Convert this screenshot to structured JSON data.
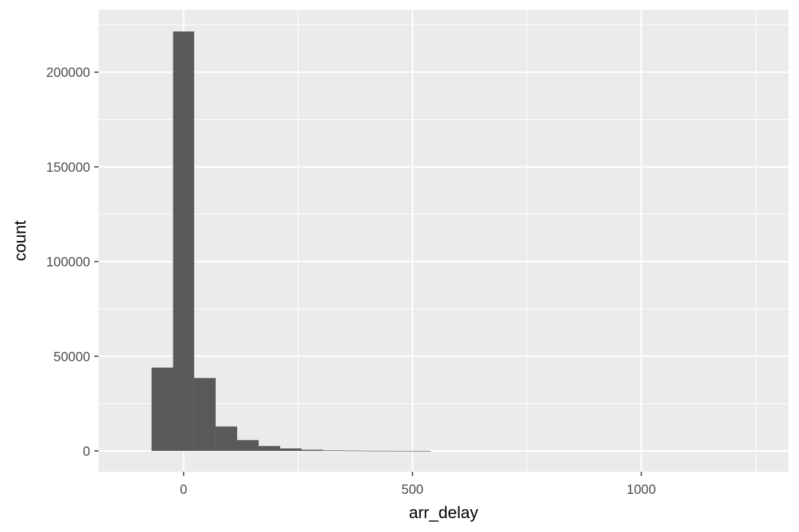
{
  "chart_data": {
    "type": "bar",
    "subtype": "histogram",
    "xlabel": "arr_delay",
    "ylabel": "count",
    "xlim": [
      -186,
      1322
    ],
    "ylim": [
      -11000,
      233000
    ],
    "x_ticks": [
      0,
      500,
      1000
    ],
    "x_tick_labels": [
      "0",
      "500",
      "1000"
    ],
    "y_ticks": [
      0,
      50000,
      100000,
      150000,
      200000
    ],
    "y_tick_labels": [
      "0",
      "50000",
      "100000",
      "150000",
      "200000"
    ],
    "grid": true,
    "legend": "none",
    "colors": {
      "panel_background": "#ebebeb",
      "grid": "#ffffff",
      "bar": "#595959",
      "tick_label": "#4d4d4d",
      "axis_title": "#000000"
    },
    "bins": [
      {
        "x0": -70,
        "x1": -23,
        "count": 44000
      },
      {
        "x0": -23,
        "x1": 23,
        "count": 221500
      },
      {
        "x0": 23,
        "x1": 70,
        "count": 38500
      },
      {
        "x0": 70,
        "x1": 117,
        "count": 12900
      },
      {
        "x0": 117,
        "x1": 164,
        "count": 5700
      },
      {
        "x0": 164,
        "x1": 211,
        "count": 2600
      },
      {
        "x0": 211,
        "x1": 258,
        "count": 1300
      },
      {
        "x0": 258,
        "x1": 305,
        "count": 600
      },
      {
        "x0": 305,
        "x1": 352,
        "count": 300
      },
      {
        "x0": 352,
        "x1": 399,
        "count": 150
      },
      {
        "x0": 399,
        "x1": 446,
        "count": 80
      },
      {
        "x0": 446,
        "x1": 493,
        "count": 40
      },
      {
        "x0": 493,
        "x1": 540,
        "count": 20
      }
    ]
  }
}
